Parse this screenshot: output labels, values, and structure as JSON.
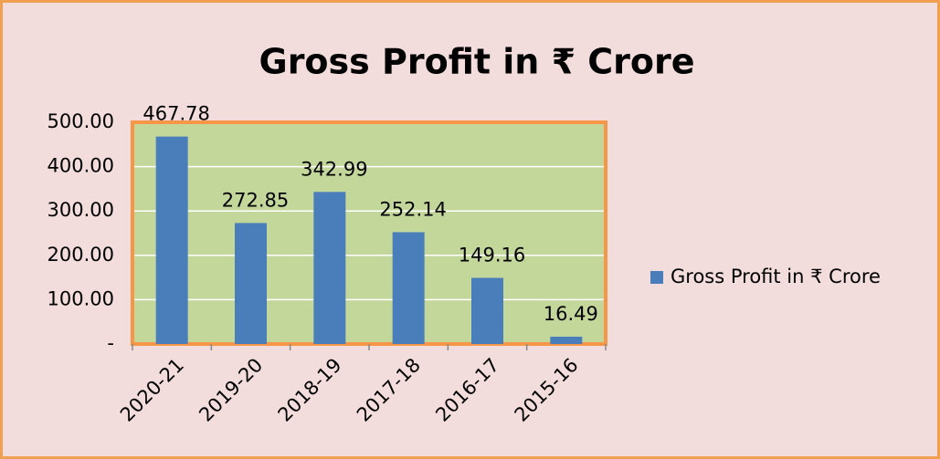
{
  "chart_data": {
    "type": "bar",
    "title": "Gross Profit  in ₹ Crore",
    "categories": [
      "2020-21",
      "2019-20",
      "2018-19",
      "2017-18",
      "2016-17",
      "2015-16"
    ],
    "series": [
      {
        "name": "Gross Profit in ₹ Crore",
        "color": "#4a7ebb",
        "values": [
          467.78,
          272.85,
          342.99,
          252.14,
          149.16,
          16.49
        ]
      }
    ],
    "ylim": [
      0,
      500
    ],
    "yticks": [
      {
        "value": 0,
        "label": "-"
      },
      {
        "value": 100,
        "label": "100.00"
      },
      {
        "value": 200,
        "label": "200.00"
      },
      {
        "value": 300,
        "label": "300.00"
      },
      {
        "value": 400,
        "label": "400.00"
      },
      {
        "value": 500,
        "label": "500.00"
      }
    ],
    "grid": true,
    "legend": "right"
  }
}
